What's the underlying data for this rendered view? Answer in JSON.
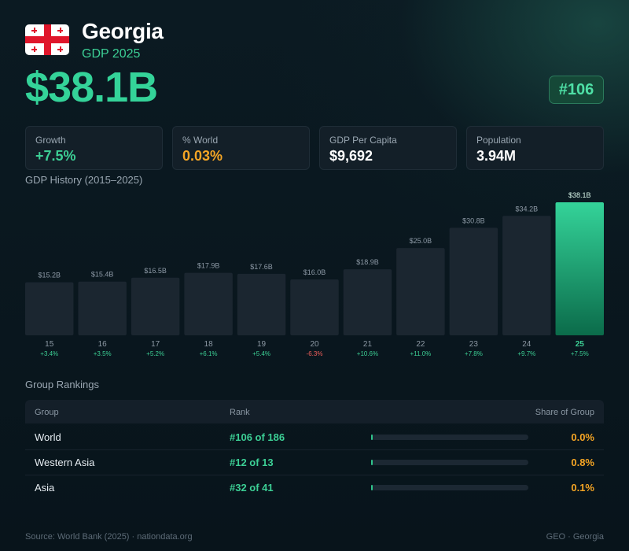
{
  "header": {
    "country": "Georgia",
    "subtitle": "GDP 2025",
    "gdp_value": "$38.1B",
    "rank_badge": "#106",
    "flag_icon": "georgia-flag-icon"
  },
  "stats": [
    {
      "label": "Growth",
      "value": "+7.5%",
      "color": "#3ccf95"
    },
    {
      "label": "% World",
      "value": "0.03%",
      "color": "#f5a524"
    },
    {
      "label": "GDP Per Capita",
      "value": "$9,692",
      "color": "#ffffff"
    },
    {
      "label": "Population",
      "value": "3.94M",
      "color": "#ffffff"
    }
  ],
  "chart_title": "GDP History (2015–2025)",
  "chart_data": {
    "type": "bar",
    "categories": [
      "15",
      "16",
      "17",
      "18",
      "19",
      "20",
      "21",
      "22",
      "23",
      "24",
      "25"
    ],
    "values": [
      15.2,
      15.4,
      16.5,
      17.9,
      17.6,
      16.0,
      18.9,
      25.0,
      30.8,
      34.2,
      38.1
    ],
    "value_labels": [
      "$15.2B",
      "$15.4B",
      "$16.5B",
      "$17.9B",
      "$17.6B",
      "$16.0B",
      "$18.9B",
      "$25.0B",
      "$30.8B",
      "$34.2B",
      "$38.1B"
    ],
    "growth": [
      "+3.4%",
      "+3.5%",
      "+5.2%",
      "+6.1%",
      "+5.4%",
      "-6.3%",
      "+10.6%",
      "+11.0%",
      "+7.8%",
      "+9.7%",
      "+7.5%"
    ],
    "highlight_index": 10,
    "ylim": [
      0,
      38.1
    ],
    "colors": {
      "bar": "#1b2630",
      "highlight_top": "#34d399",
      "highlight_bottom": "#0b6b4a",
      "positive": "#3ccf95",
      "negative": "#f25f5c",
      "label": "#8d99a5"
    }
  },
  "rankings": {
    "title": "Group Rankings",
    "columns": [
      "Group",
      "Rank",
      "Share of Group"
    ],
    "rows": [
      {
        "group": "World",
        "rank": "#106 of 186",
        "share": "0.0%",
        "share_value": 0.0
      },
      {
        "group": "Western Asia",
        "rank": "#12 of 13",
        "share": "0.8%",
        "share_value": 0.8
      },
      {
        "group": "Asia",
        "rank": "#32 of 41",
        "share": "0.1%",
        "share_value": 0.1
      }
    ]
  },
  "footer": {
    "source": "Source: World Bank (2025) · nationdata.org",
    "code": "GEO · Georgia"
  }
}
